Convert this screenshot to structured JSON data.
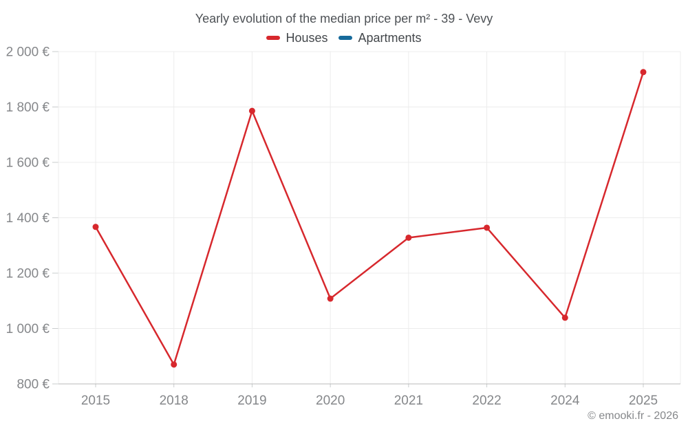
{
  "page": {
    "footer": "© emooki.fr - 2026"
  },
  "colors": {
    "houses": "#d7282d",
    "apartments": "#166a9b",
    "grid": "#ececec",
    "axis": "#b8b8b8",
    "tick": "#c9cccd",
    "tick_label": "#85878a",
    "title": "#4e5256"
  },
  "chart_data": {
    "type": "line",
    "title": "Yearly evolution of the median price per m² - 39 - Vevy",
    "categories": [
      "2015",
      "2018",
      "2019",
      "2020",
      "2021",
      "2022",
      "2024",
      "2025"
    ],
    "series": [
      {
        "name": "Houses",
        "color": "#d7282d",
        "values": [
          1367,
          870,
          1786,
          1108,
          1328,
          1364,
          1039,
          1926
        ]
      },
      {
        "name": "Apartments",
        "color": "#166a9b",
        "values": []
      }
    ],
    "xlabel": "",
    "ylabel": "",
    "ylim": [
      800,
      2000
    ],
    "ytick_step": 200,
    "y_suffix": "€",
    "grid": true,
    "legend_position": "top",
    "marker_radius": 4.5,
    "line_width": 2.5
  }
}
